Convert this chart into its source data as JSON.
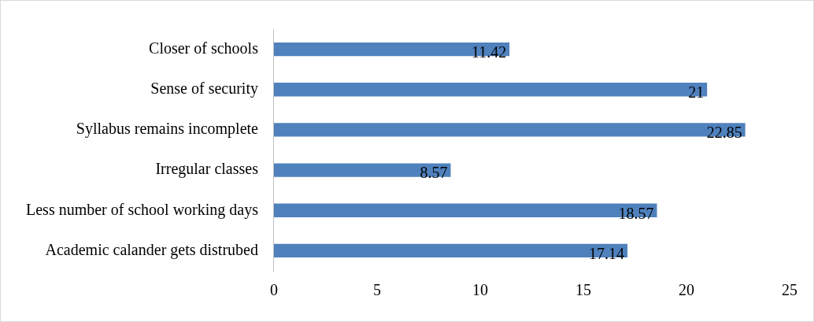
{
  "chart_data": {
    "type": "bar",
    "orientation": "horizontal",
    "categories": [
      "Closer of schools",
      "Sense of security",
      "Syllabus remains incomplete",
      "Irregular classes",
      "Less number of school working days",
      "Academic calander gets distrubed"
    ],
    "values": [
      11.42,
      21,
      22.85,
      8.57,
      18.57,
      17.14
    ],
    "color": "#4f81bd",
    "xlim": [
      0,
      25
    ],
    "xticks": [
      0,
      5,
      10,
      15,
      20,
      25
    ],
    "data_labels": true
  }
}
